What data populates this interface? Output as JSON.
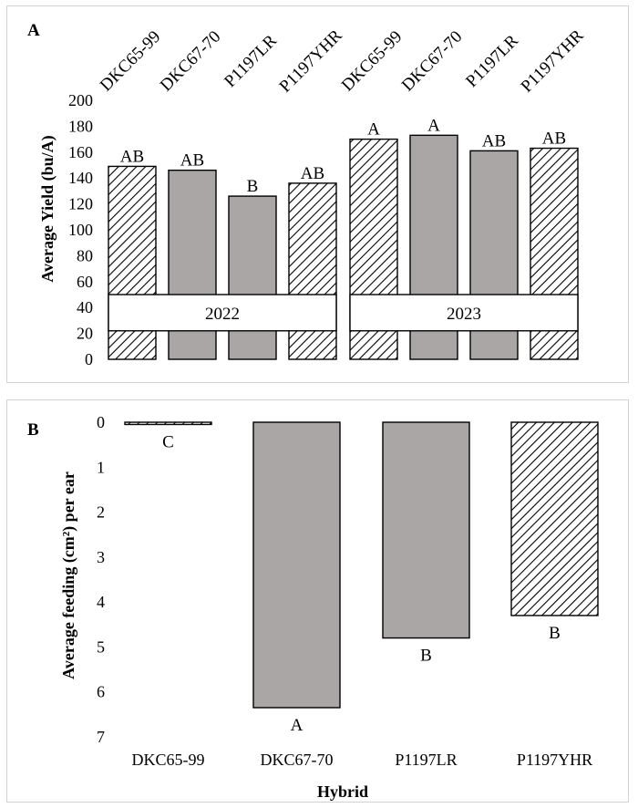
{
  "chart_data": [
    {
      "panel": "A",
      "type": "bar",
      "ylabel": "Average Yield (bu/A)",
      "ylim": [
        0,
        200
      ],
      "yticks": [
        0,
        20,
        40,
        60,
        80,
        100,
        120,
        140,
        160,
        180,
        200
      ],
      "groups": [
        "2022",
        "2023"
      ],
      "categories": [
        "DKC65-99",
        "DKC67-70",
        "P1197LR",
        "P1197YHR",
        "DKC65-99",
        "DKC67-70",
        "P1197LR",
        "P1197YHR"
      ],
      "values": [
        149,
        146,
        126,
        136,
        170,
        173,
        161,
        163
      ],
      "labels": [
        "AB",
        "AB",
        "B",
        "AB",
        "A",
        "A",
        "AB",
        "AB"
      ],
      "patterns": [
        "hatch",
        "gray",
        "gray",
        "hatch",
        "hatch",
        "gray",
        "gray",
        "hatch"
      ]
    },
    {
      "panel": "B",
      "type": "bar",
      "xlabel": "Hybrid",
      "ylabel": "Average feeding (cm²) per ear",
      "ylim": [
        0,
        7
      ],
      "yticks": [
        0,
        1,
        2,
        3,
        4,
        5,
        6,
        7
      ],
      "y_inverted": true,
      "categories": [
        "DKC65-99",
        "DKC67-70",
        "P1197LR",
        "P1197YHR"
      ],
      "values": [
        0.05,
        6.35,
        4.8,
        4.3
      ],
      "labels": [
        "C",
        "A",
        "B",
        "B"
      ],
      "patterns": [
        "hatch",
        "gray",
        "gray",
        "hatch"
      ]
    }
  ],
  "colors": {
    "gray_fill": "#aaa6a6",
    "hatch_line": "#000000",
    "outline": "#000000"
  }
}
